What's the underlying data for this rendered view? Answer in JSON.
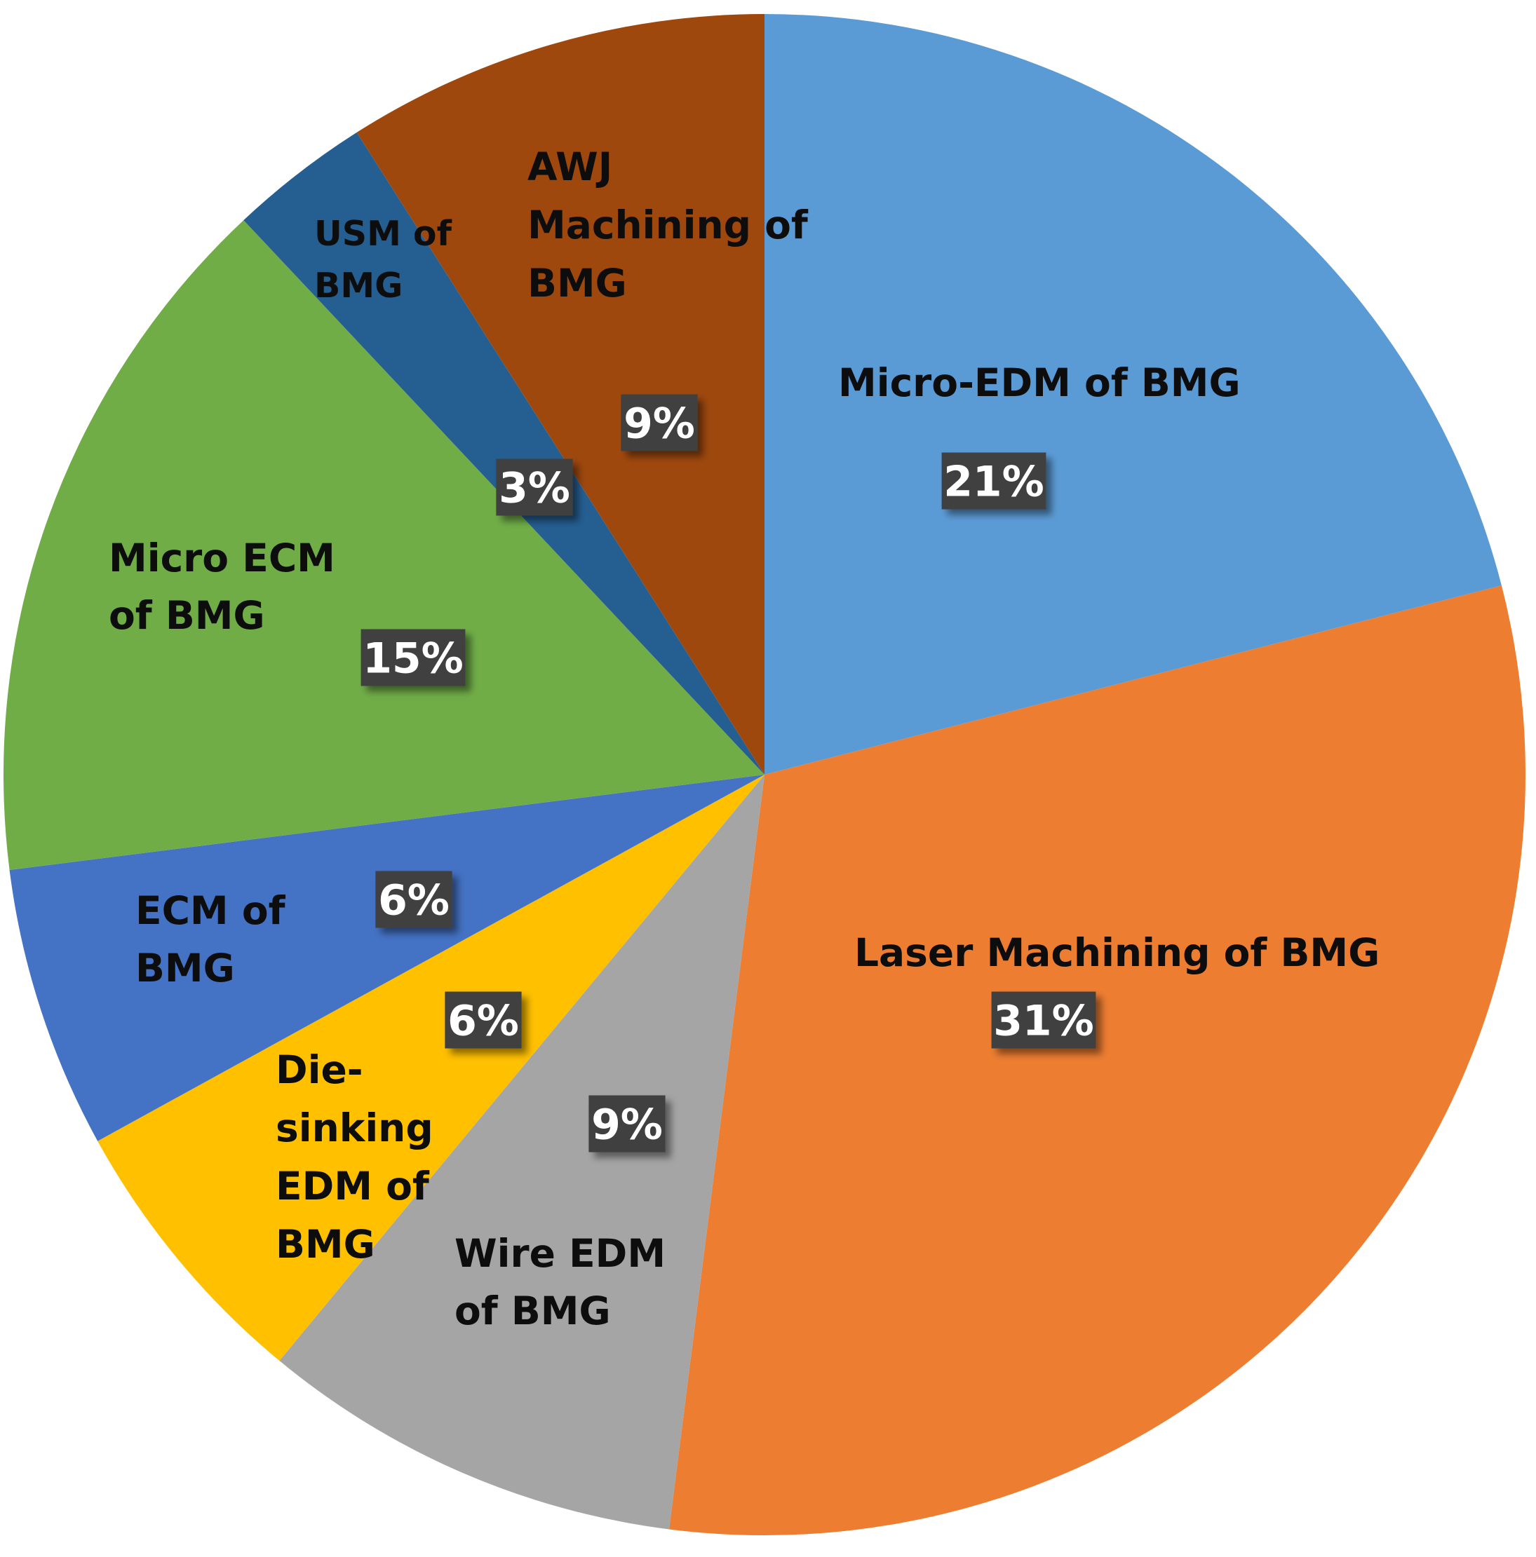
{
  "chart_data": {
    "type": "pie",
    "title": "",
    "start": "12 o'clock",
    "direction": "clockwise",
    "legend": "none",
    "label_style": "category name and percentage inside slices",
    "slices": [
      {
        "label": "Micro-EDM of BMG",
        "value": 21,
        "value_label": "21%",
        "color": "#5b9bd5"
      },
      {
        "label": "Laser Machining of BMG",
        "value": 31,
        "value_label": "31%",
        "color": "#ed7d31"
      },
      {
        "label": "Wire EDM of BMG",
        "value": 9,
        "value_label": "9%",
        "color": "#a5a5a5"
      },
      {
        "label": "Die-sinking EDM of BMG",
        "value": 6,
        "value_label": "6%",
        "color": "#ffc000"
      },
      {
        "label": "ECM of BMG",
        "value": 6,
        "value_label": "6%",
        "color": "#4472c4"
      },
      {
        "label": "Micro ECM of BMG",
        "value": 15,
        "value_label": "15%",
        "color": "#70ad47"
      },
      {
        "label": "USM of BMG",
        "value": 3,
        "value_label": "3%",
        "color": "#255e91"
      },
      {
        "label": "AWJ Machining of BMG",
        "value": 9,
        "value_label": "9%",
        "color": "#9e480e"
      }
    ],
    "percent_badge_color": "#3f3f3f",
    "label_text_color": "#0d0d0d"
  }
}
